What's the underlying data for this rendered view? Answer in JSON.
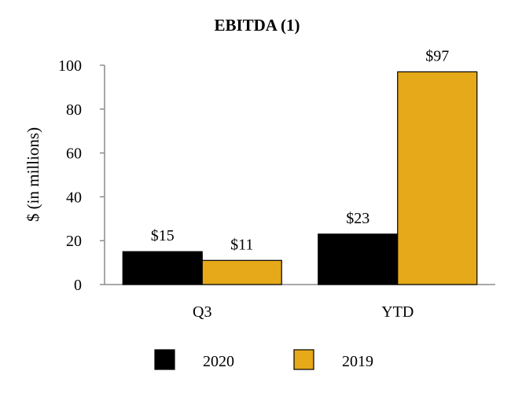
{
  "chart_data": {
    "type": "bar",
    "title": "EBITDA (1)",
    "xlabel": "",
    "ylabel": "$ (in millions)",
    "categories": [
      "Q3",
      "YTD"
    ],
    "series": [
      {
        "name": "2020",
        "values": [
          15,
          23
        ],
        "labels": [
          "$15",
          "$23"
        ],
        "color": "#000000"
      },
      {
        "name": "2019",
        "values": [
          11,
          97
        ],
        "labels": [
          "$11",
          "$97"
        ],
        "color": "#E5A919"
      }
    ],
    "ylim": [
      0,
      100
    ],
    "yticks": [
      0,
      20,
      40,
      60,
      80,
      100
    ],
    "grid": false,
    "legend_position": "bottom"
  }
}
